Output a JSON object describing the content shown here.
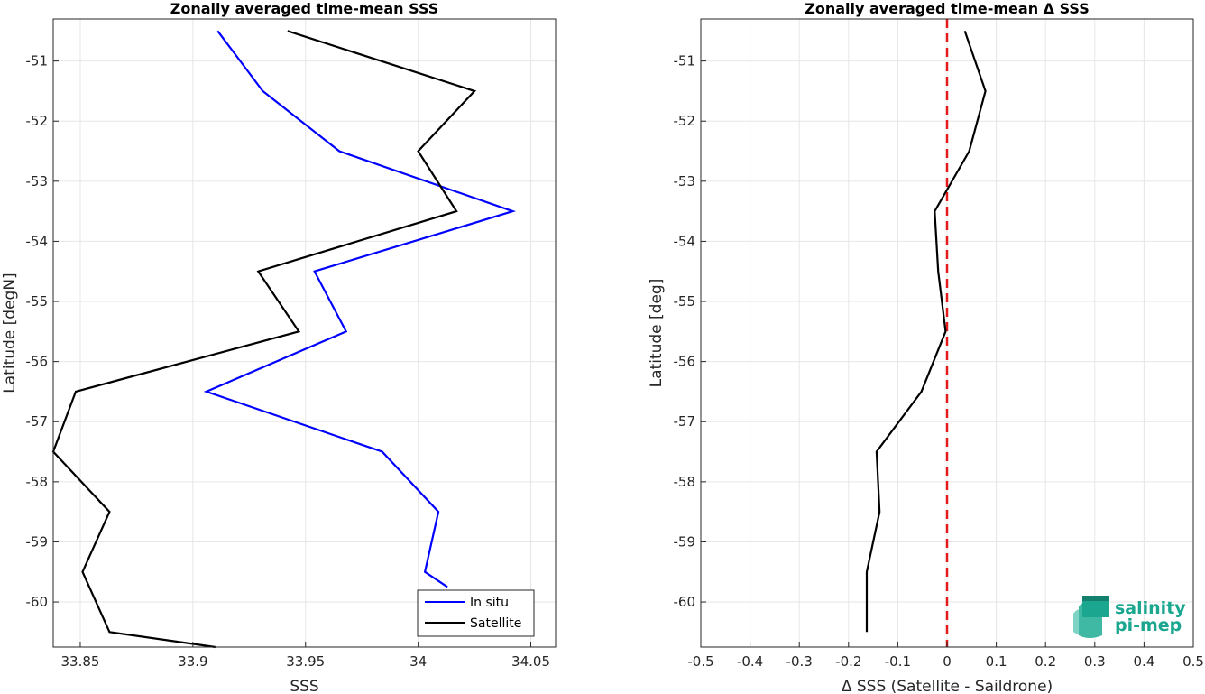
{
  "chart_data": [
    {
      "type": "line",
      "title": "Zonally averaged time-mean SSS",
      "xlabel": "SSS",
      "ylabel": "Latitude [degN]",
      "xlim": [
        33.838,
        34.061
      ],
      "ylim": [
        -60.75,
        -50.3
      ],
      "xticks": [
        33.85,
        33.9,
        33.95,
        34,
        34.05
      ],
      "xtick_labels": [
        "33.85",
        "33.9",
        "33.95",
        "34",
        "34.05"
      ],
      "yticks": [
        -51,
        -52,
        -53,
        -54,
        -55,
        -56,
        -57,
        -58,
        -59,
        -60
      ],
      "ytick_labels": [
        "-51",
        "-52",
        "-53",
        "-54",
        "-55",
        "-56",
        "-57",
        "-58",
        "-59",
        "-60"
      ],
      "grid": true,
      "legend_position": "bottom-right",
      "series": [
        {
          "name": "In situ",
          "color": "#0000ff",
          "x": [
            33.911,
            33.931,
            33.965,
            34.042,
            33.954,
            33.968,
            33.906,
            33.984,
            34.009,
            34.003,
            34.013
          ],
          "y": [
            -50.5,
            -51.5,
            -52.5,
            -53.5,
            -54.5,
            -55.5,
            -56.5,
            -57.5,
            -58.5,
            -59.5,
            -59.75
          ]
        },
        {
          "name": "Satellite",
          "color": "#000000",
          "x": [
            33.942,
            34.025,
            34.0,
            34.017,
            33.929,
            33.947,
            33.848,
            33.838,
            33.863,
            33.851,
            33.863,
            33.91
          ],
          "y": [
            -50.5,
            -51.5,
            -52.5,
            -53.5,
            -54.5,
            -55.5,
            -56.5,
            -57.5,
            -58.5,
            -59.5,
            -60.5,
            -60.75
          ]
        }
      ]
    },
    {
      "type": "line",
      "title": "Zonally averaged time-mean Δ SSS",
      "xlabel": "Δ SSS (Satellite - Saildrone)",
      "ylabel": "Latitude [deg]",
      "xlim": [
        -0.5,
        0.5
      ],
      "ylim": [
        -60.75,
        -50.3
      ],
      "xticks": [
        -0.5,
        -0.4,
        -0.3,
        -0.2,
        -0.1,
        0,
        0.1,
        0.2,
        0.3,
        0.4,
        0.5
      ],
      "xtick_labels": [
        "-0.5",
        "-0.4",
        "-0.3",
        "-0.2",
        "-0.1",
        "0",
        "0.1",
        "0.2",
        "0.3",
        "0.4",
        "0.5"
      ],
      "yticks": [
        -51,
        -52,
        -53,
        -54,
        -55,
        -56,
        -57,
        -58,
        -59,
        -60
      ],
      "ytick_labels": [
        "-51",
        "-52",
        "-53",
        "-54",
        "-55",
        "-56",
        "-57",
        "-58",
        "-59",
        "-60"
      ],
      "grid": true,
      "reference_line": {
        "x": 0,
        "color": "#e41a1c",
        "style": "dashed"
      },
      "series": [
        {
          "color": "#000000",
          "x": [
            0.036,
            0.078,
            0.045,
            -0.025,
            -0.018,
            -0.003,
            -0.052,
            -0.143,
            -0.137,
            -0.163,
            -0.163
          ],
          "y": [
            -50.5,
            -51.5,
            -52.5,
            -53.5,
            -54.5,
            -55.5,
            -56.5,
            -57.5,
            -58.5,
            -59.5,
            -60.5
          ]
        }
      ]
    }
  ],
  "logo": {
    "line1": "salinity",
    "line2": "pi-mep",
    "color": "#1aa68f"
  }
}
